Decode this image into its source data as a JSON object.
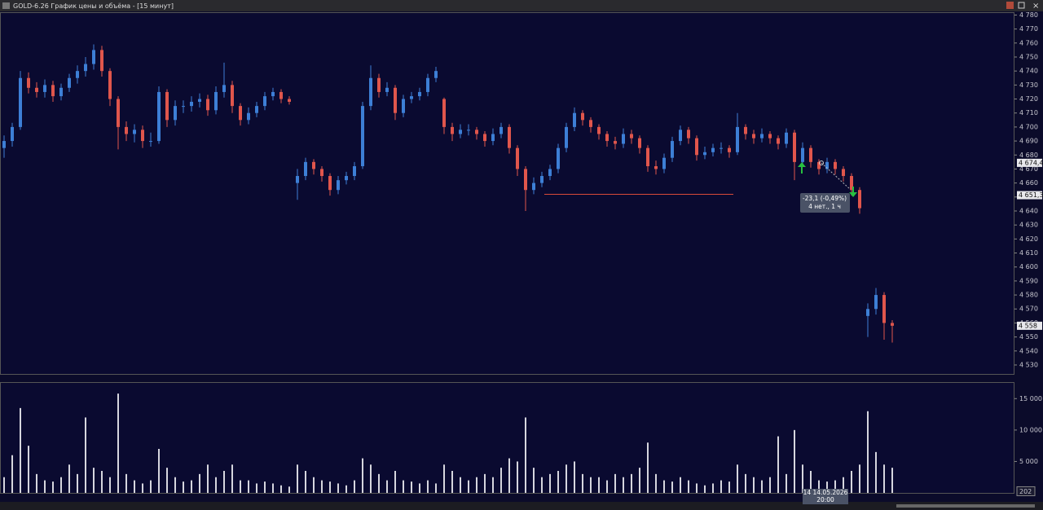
{
  "window_title": "GOLD-6.26 График цены и объёма - [15 минут]",
  "chart_data": {
    "type": "candlestick",
    "up_color": "#3d7fd6",
    "down_color": "#e0564c",
    "volume_color": "#d6d6de",
    "ylim": [
      4523,
      4782
    ],
    "yticks": [
      {
        "value": 4530,
        "label": "4 530"
      },
      {
        "value": 4540,
        "label": "4 540"
      },
      {
        "value": 4550,
        "label": "4 550"
      },
      {
        "value": 4560,
        "label": "4 560"
      },
      {
        "value": 4570,
        "label": "4 570"
      },
      {
        "value": 4580,
        "label": "4 580"
      },
      {
        "value": 4590,
        "label": "4 590"
      },
      {
        "value": 4600,
        "label": "4 600"
      },
      {
        "value": 4610,
        "label": "4 610"
      },
      {
        "value": 4620,
        "label": "4 620"
      },
      {
        "value": 4630,
        "label": "4 630"
      },
      {
        "value": 4640,
        "label": "4 640"
      },
      {
        "value": 4650,
        "label": "4 650"
      },
      {
        "value": 4660,
        "label": "4 660"
      },
      {
        "value": 4670,
        "label": "4 670"
      },
      {
        "value": 4680,
        "label": "4 680"
      },
      {
        "value": 4690,
        "label": "4 690"
      },
      {
        "value": 4700,
        "label": "4 700"
      },
      {
        "value": 4710,
        "label": "4 710"
      },
      {
        "value": 4720,
        "label": "4 720"
      },
      {
        "value": 4730,
        "label": "4 730"
      },
      {
        "value": 4740,
        "label": "4 740"
      },
      {
        "value": 4750,
        "label": "4 750"
      },
      {
        "value": 4760,
        "label": "4 760"
      },
      {
        "value": 4770,
        "label": "4 770"
      },
      {
        "value": 4780,
        "label": "4 780"
      }
    ],
    "candles": [
      [
        4685,
        4694,
        4678,
        4690
      ],
      [
        4690,
        4703,
        4686,
        4700
      ],
      [
        4700,
        4740,
        4698,
        4735
      ],
      [
        4735,
        4739,
        4724,
        4728
      ],
      [
        4728,
        4732,
        4721,
        4725
      ],
      [
        4725,
        4734,
        4721,
        4730
      ],
      [
        4730,
        4733,
        4718,
        4722
      ],
      [
        4722,
        4731,
        4719,
        4728
      ],
      [
        4728,
        4738,
        4725,
        4735
      ],
      [
        4735,
        4744,
        4731,
        4740
      ],
      [
        4740,
        4750,
        4736,
        4745
      ],
      [
        4745,
        4759,
        4741,
        4755
      ],
      [
        4755,
        4758,
        4736,
        4740
      ],
      [
        4740,
        4742,
        4715,
        4720
      ],
      [
        4720,
        4722,
        4684,
        4700
      ],
      [
        4700,
        4704,
        4690,
        4695
      ],
      [
        4695,
        4702,
        4689,
        4698
      ],
      [
        4698,
        4701,
        4685,
        4690
      ],
      [
        4690,
        4696,
        4686,
        4690
      ],
      [
        4690,
        4729,
        4688,
        4725
      ],
      [
        4725,
        4727,
        4700,
        4705
      ],
      [
        4705,
        4719,
        4701,
        4715
      ],
      [
        4715,
        4719,
        4710,
        4715
      ],
      [
        4715,
        4722,
        4711,
        4718
      ],
      [
        4718,
        4724,
        4714,
        4720
      ],
      [
        4720,
        4723,
        4708,
        4712
      ],
      [
        4712,
        4729,
        4709,
        4725
      ],
      [
        4725,
        4746,
        4721,
        4730
      ],
      [
        4730,
        4733,
        4710,
        4715
      ],
      [
        4715,
        4717,
        4701,
        4705
      ],
      [
        4705,
        4714,
        4702,
        4710
      ],
      [
        4710,
        4718,
        4707,
        4715
      ],
      [
        4715,
        4725,
        4712,
        4722
      ],
      [
        4722,
        4728,
        4719,
        4725
      ],
      [
        4725,
        4727,
        4717,
        4720
      ],
      [
        4720,
        4722,
        4716,
        4718
      ],
      [
        4660,
        4670,
        4648,
        4665
      ],
      [
        4665,
        4678,
        4662,
        4675
      ],
      [
        4675,
        4677,
        4666,
        4670
      ],
      [
        4670,
        4672,
        4661,
        4665
      ],
      [
        4665,
        4667,
        4651,
        4655
      ],
      [
        4655,
        4665,
        4652,
        4662
      ],
      [
        4662,
        4668,
        4659,
        4665
      ],
      [
        4665,
        4675,
        4662,
        4672
      ],
      [
        4672,
        4718,
        4670,
        4715
      ],
      [
        4715,
        4744,
        4712,
        4735
      ],
      [
        4735,
        4738,
        4721,
        4725
      ],
      [
        4725,
        4732,
        4722,
        4728
      ],
      [
        4728,
        4730,
        4705,
        4710
      ],
      [
        4710,
        4723,
        4707,
        4720
      ],
      [
        4720,
        4725,
        4717,
        4722
      ],
      [
        4722,
        4728,
        4719,
        4725
      ],
      [
        4725,
        4738,
        4722,
        4735
      ],
      [
        4735,
        4743,
        4732,
        4740
      ],
      [
        4720,
        4721,
        4695,
        4700
      ],
      [
        4700,
        4703,
        4690,
        4695
      ],
      [
        4695,
        4702,
        4692,
        4698
      ],
      [
        4698,
        4702,
        4694,
        4698
      ],
      [
        4698,
        4700,
        4691,
        4695
      ],
      [
        4695,
        4697,
        4686,
        4690
      ],
      [
        4690,
        4699,
        4687,
        4695
      ],
      [
        4695,
        4703,
        4692,
        4700
      ],
      [
        4700,
        4702,
        4681,
        4685
      ],
      [
        4685,
        4687,
        4665,
        4670
      ],
      [
        4670,
        4672,
        4640,
        4655
      ],
      [
        4655,
        4664,
        4652,
        4660
      ],
      [
        4660,
        4668,
        4657,
        4665
      ],
      [
        4665,
        4673,
        4662,
        4670
      ],
      [
        4670,
        4688,
        4667,
        4685
      ],
      [
        4685,
        4703,
        4682,
        4700
      ],
      [
        4700,
        4714,
        4697,
        4710
      ],
      [
        4710,
        4712,
        4701,
        4705
      ],
      [
        4705,
        4707,
        4696,
        4700
      ],
      [
        4700,
        4702,
        4691,
        4695
      ],
      [
        4695,
        4697,
        4686,
        4690
      ],
      [
        4690,
        4693,
        4684,
        4688
      ],
      [
        4688,
        4699,
        4685,
        4695
      ],
      [
        4695,
        4698,
        4688,
        4692
      ],
      [
        4692,
        4694,
        4681,
        4685
      ],
      [
        4685,
        4687,
        4668,
        4672
      ],
      [
        4672,
        4676,
        4666,
        4670
      ],
      [
        4670,
        4681,
        4667,
        4678
      ],
      [
        4678,
        4693,
        4675,
        4690
      ],
      [
        4690,
        4701,
        4687,
        4698
      ],
      [
        4698,
        4700,
        4688,
        4692
      ],
      [
        4692,
        4694,
        4676,
        4680
      ],
      [
        4680,
        4686,
        4677,
        4682
      ],
      [
        4682,
        4688,
        4679,
        4685
      ],
      [
        4685,
        4689,
        4681,
        4685
      ],
      [
        4685,
        4687,
        4678,
        4682
      ],
      [
        4682,
        4710,
        4680,
        4700
      ],
      [
        4700,
        4702,
        4691,
        4695
      ],
      [
        4695,
        4698,
        4688,
        4692
      ],
      [
        4692,
        4699,
        4689,
        4695
      ],
      [
        4695,
        4697,
        4688,
        4692
      ],
      [
        4692,
        4694,
        4684,
        4688
      ],
      [
        4688,
        4699,
        4685,
        4696
      ],
      [
        4696,
        4698,
        4662,
        4675
      ],
      [
        4675,
        4689,
        4672,
        4685
      ],
      [
        4685,
        4687,
        4671,
        4675
      ],
      [
        4675,
        4677,
        4666,
        4670
      ],
      [
        4670,
        4678,
        4667,
        4675
      ],
      [
        4675,
        4677,
        4666,
        4670
      ],
      [
        4670,
        4672,
        4661,
        4665
      ],
      [
        4665,
        4667,
        4651,
        4655
      ],
      [
        4655,
        4657,
        4638,
        4642
      ],
      [
        4565,
        4574,
        4550,
        4570
      ],
      [
        4570,
        4585,
        4566,
        4580
      ],
      [
        4580,
        4582,
        4548,
        4560
      ],
      [
        4560,
        4562,
        4546,
        4558
      ]
    ],
    "volume_ylim": [
      0,
      17500
    ],
    "volume_ticks": [
      {
        "value": 5000,
        "label": "5 000"
      },
      {
        "value": 10000,
        "label": "10 000"
      },
      {
        "value": 15000,
        "label": "15 000"
      }
    ],
    "volumes": [
      2500,
      6000,
      13500,
      7500,
      3000,
      2000,
      1800,
      2500,
      4500,
      3000,
      12000,
      4000,
      3500,
      2500,
      15800,
      3000,
      2000,
      1500,
      2000,
      7000,
      4000,
      2500,
      1800,
      2000,
      3000,
      4500,
      2500,
      3500,
      4500,
      2000,
      2000,
      1500,
      1800,
      1500,
      1200,
      1000,
      4500,
      3500,
      2500,
      2000,
      1800,
      1500,
      1200,
      2000,
      5500,
      4500,
      3000,
      2000,
      3500,
      2000,
      1800,
      1500,
      2000,
      1500,
      4500,
      3500,
      2500,
      2000,
      2500,
      3000,
      2500,
      4000,
      5500,
      5000,
      12000,
      4000,
      2500,
      3000,
      3500,
      4500,
      5000,
      3000,
      2500,
      2500,
      2000,
      3000,
      2500,
      3000,
      4000,
      8000,
      3000,
      2000,
      1800,
      2500,
      2000,
      1500,
      1200,
      1500,
      2000,
      1800,
      4500,
      3000,
      2500,
      2000,
      2500,
      9000,
      3000,
      10000,
      4500,
      3500,
      2000,
      1800,
      2000,
      2500,
      3500,
      4500,
      13000,
      6500,
      4500,
      4000
    ],
    "price_labels": [
      {
        "value": 4674.4,
        "label": "4 674,4"
      },
      {
        "value": 4651.3,
        "label": "4 651,3"
      },
      {
        "value": 4558,
        "label": "4 558"
      }
    ],
    "last_volume": 202,
    "tooltip": {
      "change": "-23,1 (-0,49%)",
      "duration": "4 нет., 1 ч"
    },
    "crosshair_date": "14 14.05.2026",
    "crosshair_time": "20:00"
  }
}
